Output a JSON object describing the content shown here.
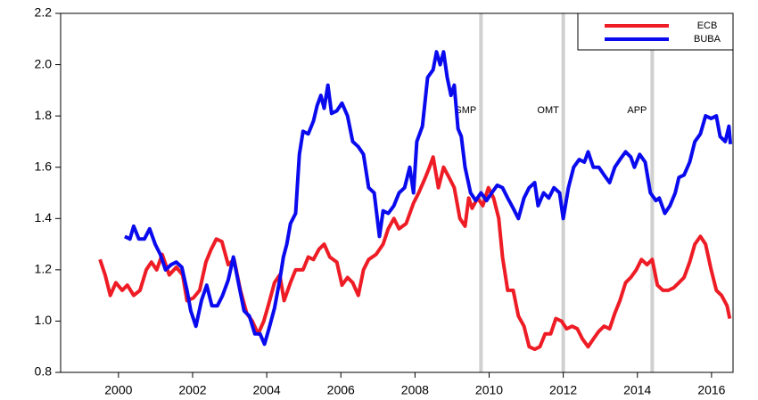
{
  "chart_data": {
    "type": "line",
    "xlim": [
      1998.44,
      2016.58
    ],
    "xticks": [
      2000,
      2002,
      2004,
      2006,
      2008,
      2010,
      2012,
      2014,
      2016
    ],
    "ylim": [
      0.8,
      2.2
    ],
    "yticks": [
      0.8,
      {
        "value": 1,
        "label": "1.0"
      },
      1.2,
      1.4,
      1.6,
      1.8,
      {
        "value": 2,
        "label": "2.0"
      },
      2.2
    ],
    "legend": "top-right",
    "annotations": [
      {
        "text": "SMP",
        "x": 2009.78,
        "color": "#d0d0d0"
      },
      {
        "text": "OMT",
        "x": 2012.0,
        "color": "#d0d0d0"
      },
      {
        "text": "APP",
        "x": 2014.4,
        "color": "#d0d0d0"
      }
    ],
    "series": [
      {
        "name": "ECB",
        "color": "#ee1c25",
        "x": [
          1999.5,
          1999.64,
          1999.78,
          1999.93,
          2000.1,
          2000.24,
          2000.41,
          2000.58,
          2000.75,
          2000.89,
          2001.03,
          2001.18,
          2001.37,
          2001.56,
          2001.73,
          2001.85,
          2002.02,
          2002.19,
          2002.36,
          2002.5,
          2002.64,
          2002.79,
          2002.96,
          2003.12,
          2003.29,
          2003.46,
          2003.61,
          2003.77,
          2003.92,
          2004.06,
          2004.21,
          2004.35,
          2004.47,
          2004.64,
          2004.78,
          2004.98,
          2005.12,
          2005.26,
          2005.41,
          2005.55,
          2005.7,
          2005.89,
          2006.03,
          2006.18,
          2006.32,
          2006.47,
          2006.61,
          2006.75,
          2006.95,
          2007.14,
          2007.28,
          2007.43,
          2007.57,
          2007.76,
          2007.96,
          2008.1,
          2008.25,
          2008.39,
          2008.49,
          2008.63,
          2008.77,
          2008.92,
          2009.06,
          2009.21,
          2009.35,
          2009.45,
          2009.54,
          2009.69,
          2009.83,
          2009.98,
          2010.12,
          2010.26,
          2010.36,
          2010.5,
          2010.65,
          2010.79,
          2010.94,
          2011.08,
          2011.23,
          2011.37,
          2011.51,
          2011.66,
          2011.8,
          2011.95,
          2012.09,
          2012.24,
          2012.38,
          2012.52,
          2012.67,
          2012.81,
          2012.96,
          2013.1,
          2013.25,
          2013.39,
          2013.53,
          2013.68,
          2013.82,
          2013.97,
          2014.11,
          2014.26,
          2014.4,
          2014.54,
          2014.69,
          2014.83,
          2014.98,
          2015.12,
          2015.26,
          2015.41,
          2015.55,
          2015.7,
          2015.84,
          2015.99,
          2016.13,
          2016.27,
          2016.42,
          2016.49
        ],
        "values": [
          1.24,
          1.18,
          1.1,
          1.15,
          1.12,
          1.14,
          1.1,
          1.12,
          1.2,
          1.23,
          1.2,
          1.26,
          1.18,
          1.21,
          1.18,
          1.08,
          1.09,
          1.12,
          1.23,
          1.28,
          1.32,
          1.31,
          1.22,
          1.24,
          1.12,
          1.03,
          1.0,
          0.95,
          1.0,
          1.07,
          1.15,
          1.18,
          1.08,
          1.15,
          1.2,
          1.2,
          1.25,
          1.24,
          1.28,
          1.3,
          1.25,
          1.23,
          1.14,
          1.17,
          1.15,
          1.1,
          1.2,
          1.24,
          1.26,
          1.3,
          1.36,
          1.4,
          1.36,
          1.38,
          1.46,
          1.5,
          1.55,
          1.6,
          1.64,
          1.52,
          1.6,
          1.56,
          1.52,
          1.4,
          1.37,
          1.48,
          1.44,
          1.48,
          1.45,
          1.52,
          1.48,
          1.4,
          1.25,
          1.12,
          1.12,
          1.02,
          0.98,
          0.9,
          0.89,
          0.9,
          0.95,
          0.95,
          1.01,
          1.0,
          0.97,
          0.98,
          0.97,
          0.93,
          0.9,
          0.93,
          0.96,
          0.98,
          0.97,
          1.03,
          1.08,
          1.15,
          1.17,
          1.2,
          1.24,
          1.22,
          1.24,
          1.14,
          1.12,
          1.12,
          1.13,
          1.15,
          1.17,
          1.23,
          1.3,
          1.33,
          1.3,
          1.2,
          1.12,
          1.1,
          1.06,
          1.01
        ]
      },
      {
        "name": "BUBA",
        "color": "#0a0aee",
        "x": [
          2000.17,
          2000.31,
          2000.41,
          2000.55,
          2000.7,
          2000.84,
          2000.99,
          2001.13,
          2001.27,
          2001.42,
          2001.56,
          2001.71,
          2001.85,
          2001.95,
          2002.09,
          2002.24,
          2002.38,
          2002.52,
          2002.67,
          2002.81,
          2002.96,
          2003.1,
          2003.25,
          2003.39,
          2003.53,
          2003.68,
          2003.82,
          2003.94,
          2004.06,
          2004.21,
          2004.35,
          2004.45,
          2004.54,
          2004.64,
          2004.78,
          2004.88,
          2004.98,
          2005.12,
          2005.26,
          2005.36,
          2005.46,
          2005.55,
          2005.65,
          2005.75,
          2005.89,
          2006.03,
          2006.18,
          2006.32,
          2006.47,
          2006.61,
          2006.75,
          2006.9,
          2007.04,
          2007.14,
          2007.28,
          2007.43,
          2007.57,
          2007.72,
          2007.86,
          2007.96,
          2008.05,
          2008.2,
          2008.34,
          2008.49,
          2008.58,
          2008.68,
          2008.77,
          2008.87,
          2008.97,
          2009.06,
          2009.16,
          2009.25,
          2009.35,
          2009.5,
          2009.64,
          2009.78,
          2009.93,
          2010.07,
          2010.22,
          2010.36,
          2010.5,
          2010.65,
          2010.79,
          2010.94,
          2011.08,
          2011.23,
          2011.32,
          2011.47,
          2011.61,
          2011.75,
          2011.9,
          2012.0,
          2012.14,
          2012.28,
          2012.43,
          2012.57,
          2012.67,
          2012.81,
          2012.96,
          2013.1,
          2013.25,
          2013.39,
          2013.53,
          2013.68,
          2013.82,
          2013.92,
          2014.06,
          2014.21,
          2014.35,
          2014.5,
          2014.59,
          2014.74,
          2014.88,
          2015.02,
          2015.12,
          2015.26,
          2015.41,
          2015.55,
          2015.7,
          2015.84,
          2015.99,
          2016.13,
          2016.23,
          2016.37,
          2016.47,
          2016.51
        ],
        "values": [
          1.33,
          1.32,
          1.37,
          1.32,
          1.32,
          1.36,
          1.3,
          1.26,
          1.2,
          1.22,
          1.23,
          1.21,
          1.12,
          1.04,
          0.98,
          1.08,
          1.14,
          1.06,
          1.06,
          1.1,
          1.16,
          1.25,
          1.14,
          1.04,
          1.02,
          0.95,
          0.95,
          0.91,
          0.97,
          1.05,
          1.16,
          1.25,
          1.3,
          1.38,
          1.42,
          1.65,
          1.74,
          1.73,
          1.78,
          1.84,
          1.88,
          1.83,
          1.92,
          1.81,
          1.82,
          1.85,
          1.8,
          1.7,
          1.68,
          1.65,
          1.52,
          1.5,
          1.33,
          1.43,
          1.42,
          1.45,
          1.5,
          1.52,
          1.6,
          1.5,
          1.7,
          1.76,
          1.95,
          1.98,
          2.05,
          2.0,
          2.05,
          1.95,
          1.88,
          1.92,
          1.75,
          1.72,
          1.6,
          1.5,
          1.47,
          1.5,
          1.47,
          1.5,
          1.53,
          1.52,
          1.48,
          1.44,
          1.4,
          1.48,
          1.52,
          1.54,
          1.45,
          1.5,
          1.48,
          1.52,
          1.5,
          1.4,
          1.52,
          1.6,
          1.63,
          1.62,
          1.66,
          1.6,
          1.6,
          1.57,
          1.54,
          1.6,
          1.63,
          1.66,
          1.64,
          1.6,
          1.65,
          1.62,
          1.5,
          1.47,
          1.48,
          1.42,
          1.45,
          1.5,
          1.56,
          1.57,
          1.62,
          1.7,
          1.73,
          1.8,
          1.79,
          1.8,
          1.72,
          1.7,
          1.76,
          1.69
        ]
      }
    ]
  }
}
